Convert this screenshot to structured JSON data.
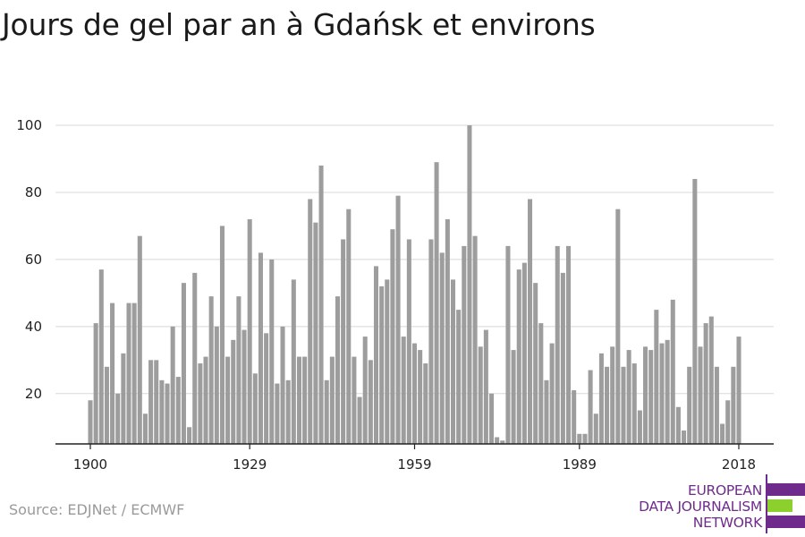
{
  "title": "Jours de gel par an à Gdańsk et environs",
  "source": "Source: EDJNet / ECMWF",
  "logo": {
    "lines": [
      "EUROPEAN",
      "DATA JOURNALISM",
      "NETWORK"
    ],
    "colors": {
      "purple": "#6e2b8c",
      "green": "#8cd02e"
    }
  },
  "colors": {
    "bar": "#9d9d9d",
    "grid": "#d8d8d8",
    "axis": "#222222"
  },
  "chart_data": {
    "type": "bar",
    "title": "Jours de gel par an à Gdańsk et environs",
    "xlabel": "",
    "ylabel": "",
    "ylim": [
      5,
      100
    ],
    "yticks": [
      20,
      40,
      60,
      80,
      100
    ],
    "xticks": [
      1900,
      1929,
      1959,
      1989,
      2018
    ],
    "grid": true,
    "legend": "none",
    "years": [
      1900,
      1901,
      1902,
      1903,
      1904,
      1905,
      1906,
      1907,
      1908,
      1909,
      1910,
      1911,
      1912,
      1913,
      1914,
      1915,
      1916,
      1917,
      1918,
      1919,
      1920,
      1921,
      1922,
      1923,
      1924,
      1925,
      1926,
      1927,
      1928,
      1929,
      1930,
      1931,
      1932,
      1933,
      1934,
      1935,
      1936,
      1937,
      1938,
      1939,
      1940,
      1941,
      1942,
      1943,
      1944,
      1945,
      1946,
      1947,
      1948,
      1949,
      1950,
      1951,
      1952,
      1953,
      1954,
      1955,
      1956,
      1957,
      1958,
      1959,
      1960,
      1961,
      1962,
      1963,
      1964,
      1965,
      1966,
      1967,
      1968,
      1969,
      1970,
      1971,
      1972,
      1973,
      1974,
      1975,
      1976,
      1977,
      1978,
      1979,
      1980,
      1981,
      1982,
      1983,
      1984,
      1985,
      1986,
      1987,
      1988,
      1989,
      1990,
      1991,
      1992,
      1993,
      1994,
      1995,
      1996,
      1997,
      1998,
      1999,
      2000,
      2001,
      2002,
      2003,
      2004,
      2005,
      2006,
      2007,
      2008,
      2009,
      2010,
      2011,
      2012,
      2013,
      2014,
      2015,
      2016,
      2017,
      2018
    ],
    "values": [
      18,
      41,
      57,
      28,
      47,
      20,
      32,
      47,
      47,
      67,
      14,
      30,
      30,
      24,
      23,
      40,
      25,
      53,
      10,
      56,
      29,
      31,
      49,
      40,
      70,
      31,
      36,
      49,
      39,
      72,
      26,
      62,
      38,
      60,
      23,
      40,
      24,
      54,
      31,
      31,
      78,
      71,
      88,
      24,
      31,
      49,
      66,
      75,
      31,
      19,
      37,
      30,
      58,
      52,
      54,
      69,
      79,
      37,
      66,
      35,
      33,
      29,
      66,
      89,
      62,
      72,
      54,
      45,
      64,
      100,
      67,
      34,
      39,
      20,
      7,
      6,
      64,
      33,
      57,
      59,
      78,
      53,
      41,
      24,
      35,
      64,
      56,
      64,
      21,
      8,
      8,
      27,
      14,
      32,
      28,
      34,
      75,
      28,
      33,
      29,
      15,
      34,
      33,
      45,
      35,
      36,
      48,
      16,
      9,
      28,
      84,
      34,
      41,
      43,
      28,
      11,
      18,
      28,
      37
    ]
  }
}
